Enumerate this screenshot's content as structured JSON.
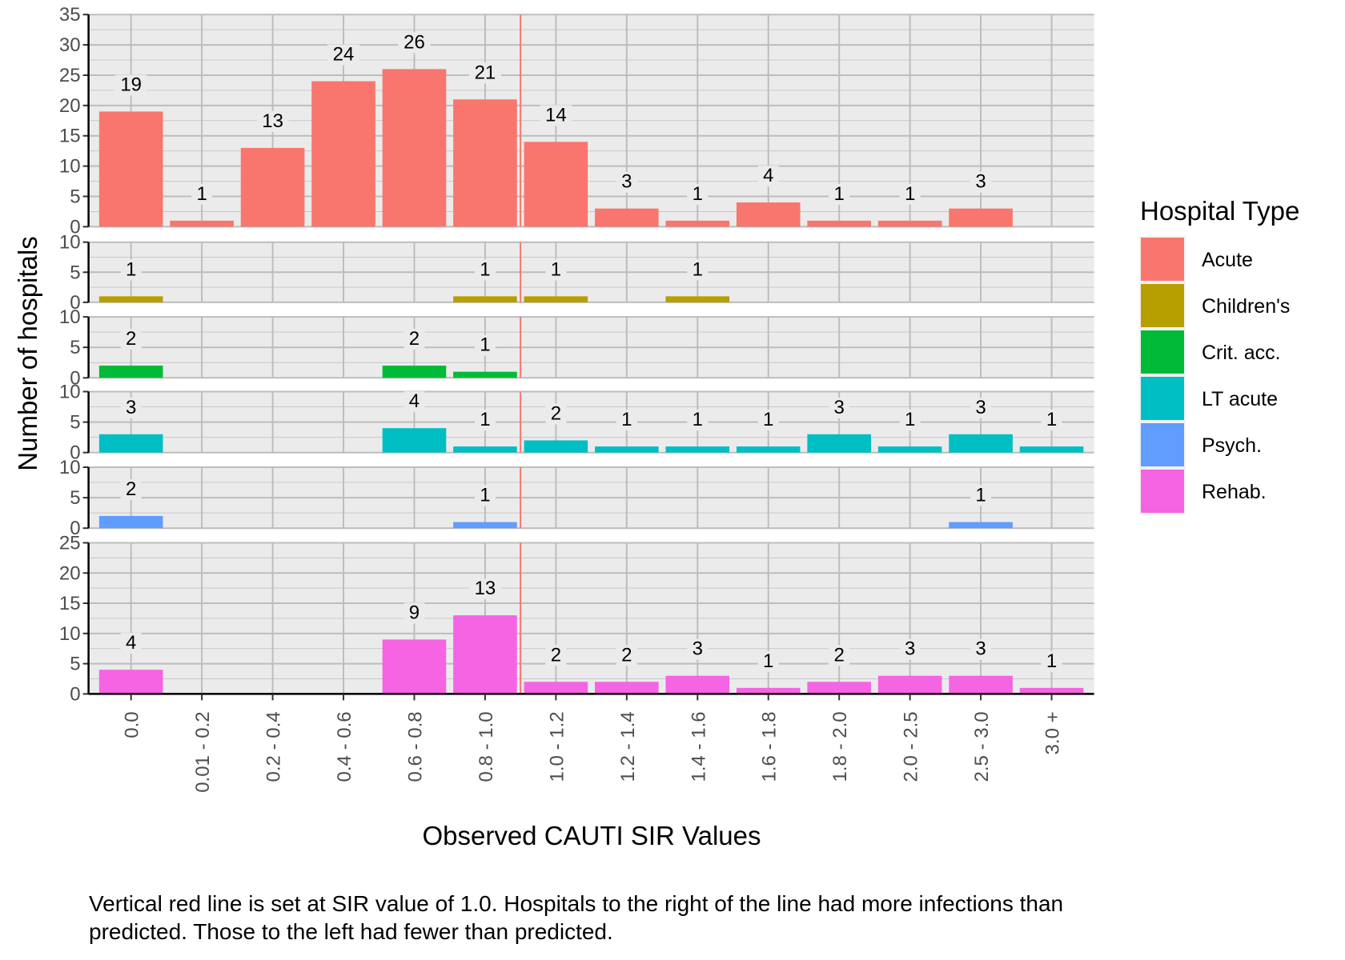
{
  "chart_data": {
    "type": "bar",
    "title": "",
    "xlabel": "Observed CAUTI SIR Values",
    "ylabel": "Number of hospitals",
    "categories": [
      "0.0",
      "0.01 - 0.2",
      "0.2 - 0.4",
      "0.4 - 0.6",
      "0.6 - 0.8",
      "0.8 - 1.0",
      "1.0 - 1.2",
      "1.2 - 1.4",
      "1.4 - 1.6",
      "1.6 - 1.8",
      "1.8 - 2.0",
      "2.0 - 2.5",
      "2.5 - 3.0",
      "3.0 +"
    ],
    "reference_line": {
      "after_category": "0.8 - 1.0",
      "label": "SIR = 1.0",
      "color": "#F8766D"
    },
    "legend": {
      "title": "Hospital Type",
      "position": "right"
    },
    "grid": true,
    "facets": [
      {
        "name": "Acute",
        "color": "#F8766D",
        "ylim": [
          0,
          35
        ],
        "yticks": [
          0,
          5,
          10,
          15,
          20,
          25,
          30,
          35
        ],
        "values": [
          19,
          1,
          13,
          24,
          26,
          21,
          14,
          3,
          1,
          4,
          1,
          1,
          3,
          null
        ]
      },
      {
        "name": "Children's",
        "color": "#B79F00",
        "ylim": [
          0,
          10
        ],
        "yticks": [
          0,
          5,
          10
        ],
        "values": [
          1,
          null,
          null,
          null,
          null,
          1,
          1,
          null,
          1,
          null,
          null,
          null,
          null,
          null
        ]
      },
      {
        "name": "Crit. acc.",
        "color": "#00BA38",
        "ylim": [
          0,
          10
        ],
        "yticks": [
          0,
          5,
          10
        ],
        "values": [
          2,
          null,
          null,
          null,
          2,
          1,
          null,
          null,
          null,
          null,
          null,
          null,
          null,
          null
        ]
      },
      {
        "name": "LT acute",
        "color": "#00BFC4",
        "ylim": [
          0,
          10
        ],
        "yticks": [
          0,
          5,
          10
        ],
        "values": [
          3,
          null,
          null,
          null,
          4,
          1,
          2,
          1,
          1,
          1,
          3,
          1,
          3,
          1
        ]
      },
      {
        "name": "Psych.",
        "color": "#619CFF",
        "ylim": [
          0,
          10
        ],
        "yticks": [
          0,
          5,
          10
        ],
        "values": [
          2,
          null,
          null,
          null,
          null,
          1,
          null,
          null,
          null,
          null,
          null,
          null,
          1,
          null
        ]
      },
      {
        "name": "Rehab.",
        "color": "#F564E3",
        "ylim": [
          0,
          25
        ],
        "yticks": [
          0,
          5,
          10,
          15,
          20,
          25
        ],
        "values": [
          4,
          null,
          null,
          null,
          9,
          13,
          2,
          2,
          3,
          1,
          2,
          3,
          3,
          1
        ]
      }
    ]
  },
  "caption": {
    "line1": "Vertical red line is set at SIR value of 1.0.  Hospitals to the right of the line had more infections than",
    "line2": "predicted.  Those to the left had fewer than predicted."
  }
}
